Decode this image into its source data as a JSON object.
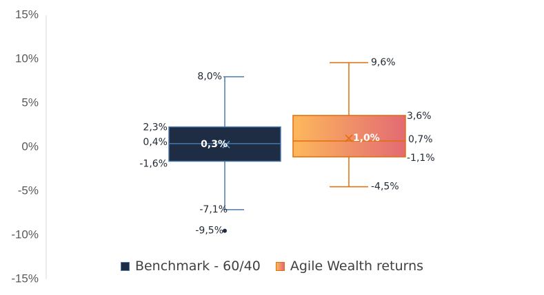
{
  "chart_data": {
    "type": "box",
    "ylim": [
      -15,
      15
    ],
    "yticks": [
      -15,
      -10,
      -5,
      0,
      5,
      10,
      15
    ],
    "ytick_labels": [
      "-15%",
      "-10%",
      "-5%",
      "0%",
      "5%",
      "10%",
      "15%"
    ],
    "legend_position": "bottom",
    "series": [
      {
        "name": "Benchmark - 60/40",
        "color": "#1f2d44",
        "edge": "#4a78a8",
        "max": 8.0,
        "q3": 2.3,
        "median": 0.4,
        "q1": -1.6,
        "min": -7.1,
        "mean": 0.3,
        "outliers": [
          -9.5
        ],
        "labels": {
          "max": "8,0%",
          "q3": "2,3%",
          "median": "0,4%",
          "q1": "-1,6%",
          "min": "-7,1%",
          "mean": "0,3%",
          "outliers": [
            "-9,5%"
          ]
        }
      },
      {
        "name": "Agile Wealth returns",
        "color_start": "#fdb85c",
        "color_end": "#e26a73",
        "edge": "#e36c0a",
        "max": 9.6,
        "q3": 3.6,
        "median": 0.7,
        "q1": -1.1,
        "min": -4.5,
        "mean": 1.0,
        "outliers": [],
        "labels": {
          "max": "9,6%",
          "q3": "3,6%",
          "median": "0,7%",
          "q1": "-1,1%",
          "min": "-4,5%",
          "mean": "1,0%",
          "outliers": []
        }
      }
    ]
  }
}
